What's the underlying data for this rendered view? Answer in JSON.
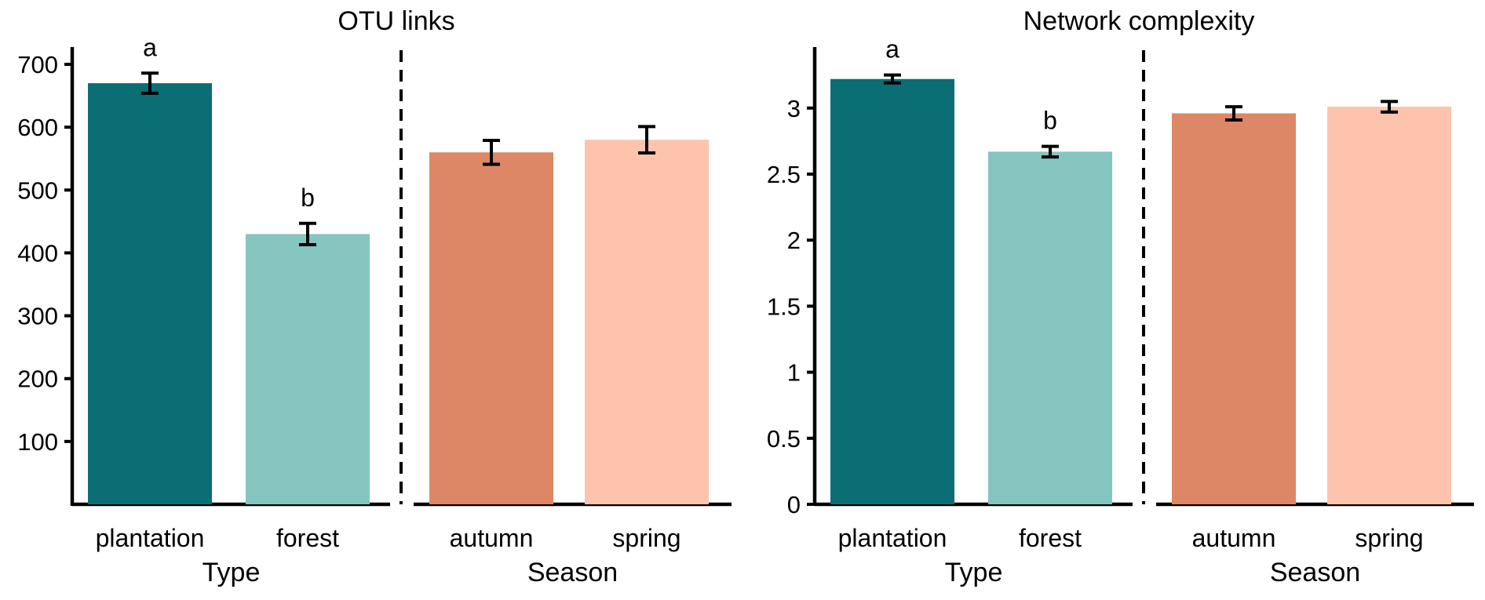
{
  "figure": {
    "background": "#ffffff",
    "text_color": "#000000",
    "axis_color": "#000000"
  },
  "palette": {
    "plantation": "#0b6e74",
    "forest": "#85c5bf",
    "autumn": "#dd8766",
    "spring": "#fec3ac"
  },
  "chart_data": [
    {
      "type": "bar",
      "title": "OTU links",
      "xlabel": "",
      "ylabel": "",
      "ylim": [
        0,
        725
      ],
      "grid": false,
      "legend": "none",
      "separator": "dashed-vertical-line-between-panels",
      "error_bars": "mean ± se, capped",
      "yticks": [
        {
          "v": 100,
          "label": "100"
        },
        {
          "v": 200,
          "label": "200"
        },
        {
          "v": 300,
          "label": "300"
        },
        {
          "v": 400,
          "label": "400"
        },
        {
          "v": 500,
          "label": "500"
        },
        {
          "v": 600,
          "label": "600"
        },
        {
          "v": 700,
          "label": "700"
        }
      ],
      "panels": [
        {
          "xlabel": "Type",
          "bars": [
            {
              "category": "plantation",
              "value": 670,
              "error": 16,
              "letter": "a",
              "color": "#0b6e74"
            },
            {
              "category": "forest",
              "value": 430,
              "error": 17,
              "letter": "b",
              "color": "#85c5bf"
            }
          ]
        },
        {
          "xlabel": "Season",
          "bars": [
            {
              "category": "autumn",
              "value": 560,
              "error": 19,
              "letter": "",
              "color": "#dd8766"
            },
            {
              "category": "spring",
              "value": 580,
              "error": 21,
              "letter": "",
              "color": "#fec3ac"
            }
          ]
        }
      ]
    },
    {
      "type": "bar",
      "title": "Network complexity",
      "xlabel": "",
      "ylabel": "",
      "ylim": [
        0,
        3.45
      ],
      "grid": false,
      "legend": "none",
      "separator": "dashed-vertical-line-between-panels",
      "error_bars": "mean ± se, capped",
      "yticks": [
        {
          "v": 0,
          "label": "0"
        },
        {
          "v": 0.5,
          "label": "0.5"
        },
        {
          "v": 1,
          "label": "1"
        },
        {
          "v": 1.5,
          "label": "1.5"
        },
        {
          "v": 2,
          "label": "2"
        },
        {
          "v": 2.5,
          "label": "2.5"
        },
        {
          "v": 3,
          "label": "3"
        }
      ],
      "panels": [
        {
          "xlabel": "Type",
          "bars": [
            {
              "category": "plantation",
              "value": 3.22,
              "error": 0.03,
              "letter": "a",
              "color": "#0b6e74"
            },
            {
              "category": "forest",
              "value": 2.67,
              "error": 0.04,
              "letter": "b",
              "color": "#85c5bf"
            }
          ]
        },
        {
          "xlabel": "Season",
          "bars": [
            {
              "category": "autumn",
              "value": 2.96,
              "error": 0.05,
              "letter": "",
              "color": "#dd8766"
            },
            {
              "category": "spring",
              "value": 3.01,
              "error": 0.04,
              "letter": "",
              "color": "#fec3ac"
            }
          ]
        }
      ]
    }
  ]
}
